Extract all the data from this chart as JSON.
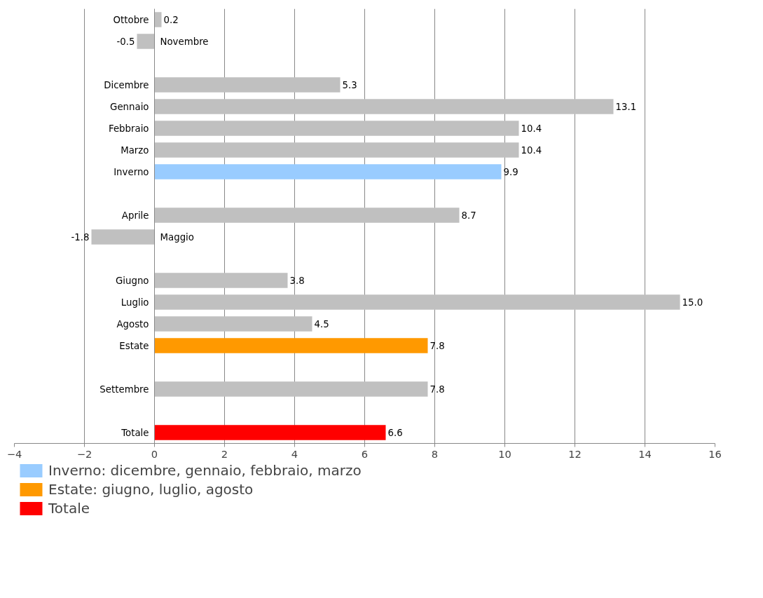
{
  "chart_data": {
    "type": "bar",
    "orientation": "horizontal",
    "categories": [
      "Ottobre",
      "Novembre",
      null,
      "Dicembre",
      "Gennaio",
      "Febbraio",
      "Marzo",
      "Inverno",
      null,
      "Aprile",
      "Maggio",
      null,
      "Giugno",
      "Luglio",
      "Agosto",
      "Estate",
      null,
      "Settembre",
      null,
      "Totale"
    ],
    "series": [
      {
        "color": "#c0c0c0",
        "values": [
          0.2,
          -0.5,
          null,
          5.3,
          13.1,
          10.4,
          10.4,
          null,
          null,
          8.7,
          -1.8,
          null,
          3.8,
          15.0,
          4.5,
          null,
          null,
          7.8,
          null,
          null
        ],
        "value_labels": [
          "0.2",
          "-0.5",
          null,
          "5.3",
          "13.1",
          "10.4",
          "10.4",
          null,
          null,
          "8.7",
          "-1.8",
          null,
          "3.8",
          "15.0",
          "4.5",
          null,
          null,
          "7.8",
          null,
          null
        ]
      },
      {
        "name": "Inverno: dicembre, gennaio, febbraio, marzo",
        "color": "#99ccff",
        "values": [
          null,
          null,
          null,
          null,
          null,
          null,
          null,
          9.9,
          null,
          null,
          null,
          null,
          null,
          null,
          null,
          null,
          null,
          null,
          null,
          null
        ],
        "value_labels": [
          null,
          null,
          null,
          null,
          null,
          null,
          null,
          "9.9",
          null,
          null,
          null,
          null,
          null,
          null,
          null,
          null,
          null,
          null,
          null,
          null
        ]
      },
      {
        "name": "Estate: giugno, luglio, agosto",
        "color": "#ff9900",
        "values": [
          null,
          null,
          null,
          null,
          null,
          null,
          null,
          null,
          null,
          null,
          null,
          null,
          null,
          null,
          null,
          7.8,
          null,
          null,
          null,
          null
        ],
        "value_labels": [
          null,
          null,
          null,
          null,
          null,
          null,
          null,
          null,
          null,
          null,
          null,
          null,
          null,
          null,
          null,
          "7.8",
          null,
          null,
          null,
          null
        ]
      },
      {
        "name": "Totale",
        "color": "#ff0000",
        "values": [
          null,
          null,
          null,
          null,
          null,
          null,
          null,
          null,
          null,
          null,
          null,
          null,
          null,
          null,
          null,
          null,
          null,
          null,
          null,
          6.6
        ],
        "value_labels": [
          null,
          null,
          null,
          null,
          null,
          null,
          null,
          null,
          null,
          null,
          null,
          null,
          null,
          null,
          null,
          null,
          null,
          null,
          null,
          "6.6"
        ]
      }
    ],
    "xlim": [
      -4,
      16
    ],
    "xticks": [
      -4,
      -2,
      0,
      2,
      4,
      6,
      8,
      10,
      12,
      14,
      16
    ],
    "grid": "x",
    "legend": "bottom"
  }
}
